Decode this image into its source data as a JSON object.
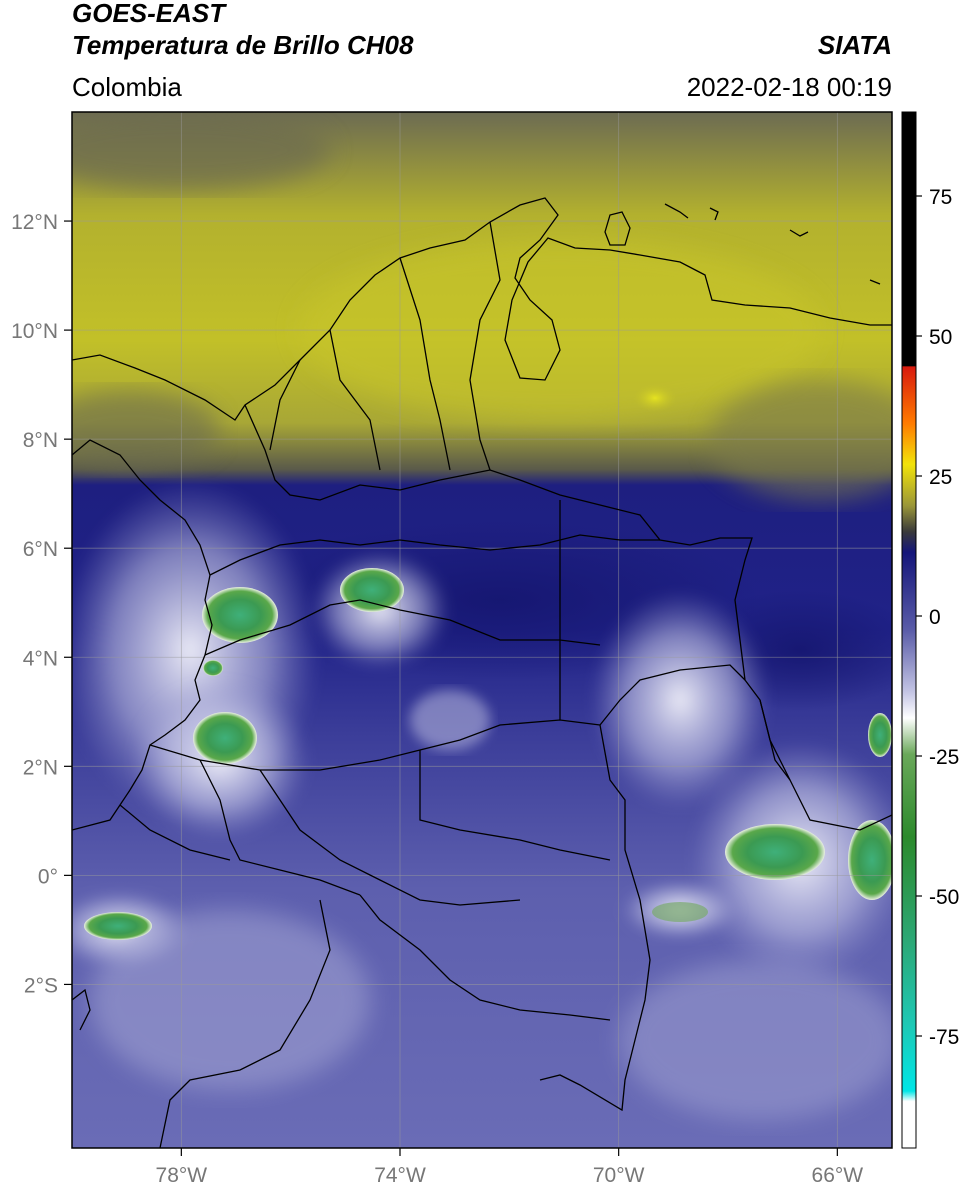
{
  "header": {
    "satellite": "GOES-EAST",
    "product": "Temperatura de Brillo CH08",
    "region": "Colombia",
    "agency": "SIATA",
    "timestamp": "2022-02-18 00:19"
  },
  "map": {
    "lon_range": [
      -80,
      -65
    ],
    "lat_range": [
      -5,
      14
    ],
    "lon_ticks": [
      -78,
      -74,
      -70,
      -66
    ],
    "lon_tick_labels": [
      "78°W",
      "74°W",
      "70°W",
      "66°W"
    ],
    "lat_ticks": [
      12,
      10,
      8,
      6,
      4,
      2,
      0,
      -2
    ],
    "lat_tick_labels": [
      "12°N",
      "10°N",
      "8°N",
      "6°N",
      "4°N",
      "2°N",
      "0°",
      "2°S"
    ],
    "grid": true
  },
  "colorbar": {
    "range": [
      -95,
      90
    ],
    "ticks": [
      75,
      50,
      25,
      0,
      -25,
      -50,
      -75
    ],
    "tick_labels": [
      "75",
      "50",
      "25",
      "0",
      "-25",
      "-50",
      "-75"
    ]
  },
  "colors": {
    "dry_upper_air": "#c2c028",
    "transition": "#5a5a4a",
    "moist_upper_air": "#232486",
    "cold_cloud": "#9a9bd0",
    "cloud_top_white": "#f2f2fa",
    "deep_convection": "#3ea462",
    "land_border": "#000000",
    "grid_line": "#9a9a9a"
  }
}
